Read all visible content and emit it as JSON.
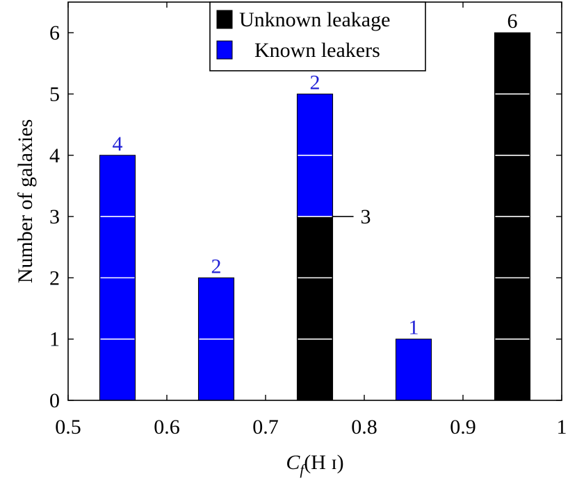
{
  "chart_data": {
    "type": "bar",
    "stacked": true,
    "x_bins": [
      0.55,
      0.65,
      0.75,
      0.85,
      0.95
    ],
    "series": [
      {
        "name": "Unknown leakage",
        "color": "#000000",
        "label_color": "#000000",
        "values": [
          0,
          0,
          3,
          0,
          6
        ]
      },
      {
        "name": "Known leakers",
        "color": "#0000ff",
        "label_color": "#1f1fd6",
        "values": [
          4,
          2,
          2,
          1,
          0
        ]
      }
    ],
    "xlabel": {
      "main": "C",
      "subscript": "f",
      "suffix": "(H ɪ)"
    },
    "ylabel": "Number of galaxies",
    "xlim": [
      0.5,
      1.0
    ],
    "ylim": [
      0,
      6.5
    ],
    "xticks": [
      0.5,
      0.6,
      0.7,
      0.8,
      0.9,
      1.0
    ],
    "xtick_labels": [
      "0.5",
      "0.6",
      "0.7",
      "0.8",
      "0.9",
      "1"
    ],
    "yticks": [
      0,
      1,
      2,
      3,
      4,
      5,
      6
    ],
    "ytick_labels": [
      "0",
      "1",
      "2",
      "3",
      "4",
      "5",
      "6"
    ],
    "bar_labels": [
      {
        "bin": 0.55,
        "series": "Known leakers",
        "text": "4"
      },
      {
        "bin": 0.65,
        "series": "Known leakers",
        "text": "2"
      },
      {
        "bin": 0.75,
        "series": "Known leakers",
        "text": "2"
      },
      {
        "bin": 0.75,
        "series": "Unknown leakage",
        "text": "3",
        "side": "right"
      },
      {
        "bin": 0.85,
        "series": "Known leakers",
        "text": "1"
      },
      {
        "bin": 0.95,
        "series": "Unknown leakage",
        "text": "6"
      }
    ],
    "grid": "white lines at y ticks inside bars",
    "legend": {
      "position": "top-center",
      "entries": [
        "Unknown leakage",
        "Known leakers"
      ]
    }
  }
}
